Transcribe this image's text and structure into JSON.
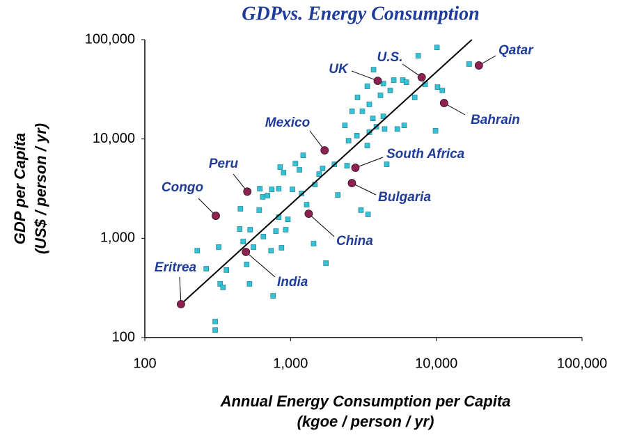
{
  "chart_data": {
    "type": "scatter",
    "title": "GDPvs. Energy Consumption",
    "xlabel": [
      "Annual Energy Consumption per Capita",
      "(kgoe / person / yr)"
    ],
    "ylabel": [
      "GDP per Capita",
      "(US$ / person / yr)"
    ],
    "xlog": true,
    "ylog": true,
    "xlim": [
      100,
      100000
    ],
    "ylim": [
      100,
      100000
    ],
    "xticks": [
      100,
      {
        "value": 1000,
        "label": "1,000"
      },
      {
        "value": 10000,
        "label": "10,000"
      },
      {
        "value": 100000,
        "label": "100,000"
      }
    ],
    "yticks": [
      100,
      {
        "value": 1000,
        "label": "1,000"
      },
      {
        "value": 10000,
        "label": "10,000"
      },
      {
        "value": 100000,
        "label": "100,000"
      }
    ],
    "series": [
      {
        "color": "#33c3d6",
        "x": [
          229,
          264,
          304,
          304,
          321,
          329,
          344,
          363,
          448,
          473,
          453,
          500,
          523,
          528,
          557,
          615,
          644,
          651,
          695,
          735,
          759,
          794,
          830,
          830,
          848,
          867,
          896,
          927,
          958,
          1030,
          1080,
          1150,
          1190,
          1220,
          1290,
          1470,
          1570,
          1660,
          1750,
          2000,
          2110,
          2360,
          2440,
          2500,
          2640,
          2850,
          2880,
          3040,
          3110,
          3360,
          3360,
          3400,
          3470,
          3470,
          3670,
          3710,
          3880,
          4140,
          4330,
          4330,
          4420,
          4570,
          4830,
          5110,
          5400,
          5890,
          6020,
          6230,
          7110,
          7510,
          8380,
          9880,
          10200,
          10100,
          11000,
          16800,
          1440,
          743,
          610
        ],
        "values": [
          750,
          494,
          145,
          119,
          815,
          347,
          320,
          479,
          1240,
          927,
          1980,
          545,
          347,
          1220,
          815,
          3160,
          2610,
          1040,
          2690,
          750,
          263,
          1180,
          3160,
          1630,
          5210,
          802,
          4580,
          1220,
          1550,
          3110,
          5650,
          4890,
          2830,
          6850,
          2180,
          3480,
          4430,
          5050,
          562,
          5560,
          2730,
          13700,
          5380,
          9610,
          19000,
          10800,
          26200,
          1920,
          19000,
          8590,
          33900,
          1740,
          11700,
          22300,
          16100,
          49900,
          13300,
          27500,
          36100,
          16900,
          12600,
          5560,
          30800,
          39200,
          12600,
          39200,
          13700,
          37300,
          26200,
          68900,
          35600,
          12100,
          33300,
          83500,
          30800,
          56800,
          883,
          3110,
          1920
        ]
      }
    ],
    "labeled_points": [
      {
        "label": "Eritrea",
        "x": 177,
        "y": 217
      },
      {
        "label": "India",
        "x": 494,
        "y": 728
      },
      {
        "label": "Congo",
        "x": 307,
        "y": 1683
      },
      {
        "label": "Peru",
        "x": 505,
        "y": 2950
      },
      {
        "label": "China",
        "x": 1332,
        "y": 1766
      },
      {
        "label": "Mexico",
        "x": 1713,
        "y": 7680
      },
      {
        "label": "South Africa",
        "x": 2786,
        "y": 5130
      },
      {
        "label": "Bulgaria",
        "x": 2636,
        "y": 3597
      },
      {
        "label": "UK",
        "x": 3963,
        "y": 38530
      },
      {
        "label": "U.S.",
        "x": 7940,
        "y": 41800
      },
      {
        "label": "Qatar",
        "x": 19590,
        "y": 55000
      },
      {
        "label": "Bahrain",
        "x": 11300,
        "y": 23000
      }
    ],
    "labeled_color": "#8b2252",
    "trend_line": {
      "x": [
        177,
        17540
      ],
      "values": [
        217,
        100000
      ],
      "color": "#000000"
    }
  }
}
